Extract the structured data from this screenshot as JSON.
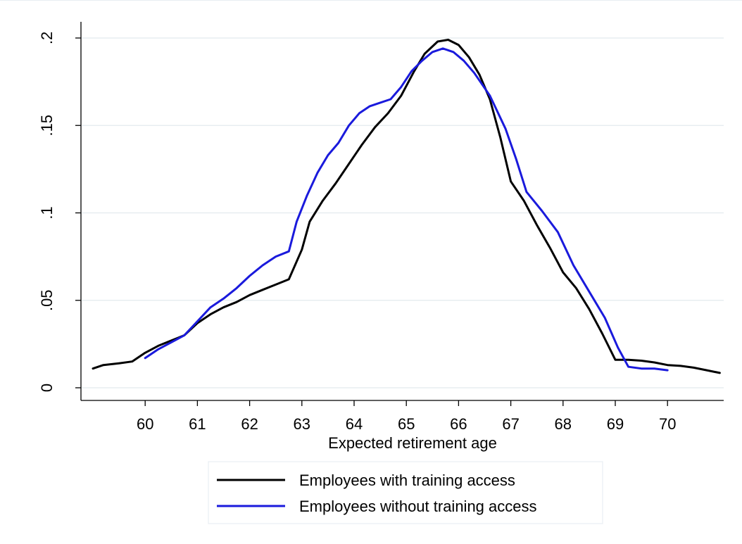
{
  "chart_data": {
    "type": "line",
    "title": "",
    "xlabel": "Expected retirement age",
    "ylabel": "",
    "xlim": [
      59,
      71.1
    ],
    "ylim": [
      -0.007,
      0.203
    ],
    "x_ticks": [
      60,
      61,
      62,
      63,
      64,
      65,
      66,
      67,
      68,
      69,
      70
    ],
    "x_tick_labels": [
      "60",
      "61",
      "62",
      "63",
      "64",
      "65",
      "66",
      "67",
      "68",
      "69",
      "70"
    ],
    "y_ticks": [
      0,
      0.05,
      0.1,
      0.15,
      0.2
    ],
    "y_tick_labels": [
      "0",
      ".05",
      ".1",
      ".15",
      ".2"
    ],
    "grid": true,
    "legend_position": "bottom",
    "series": [
      {
        "name": "Employees with training access",
        "color": "#000000",
        "x": [
          59,
          59.2,
          59.5,
          59.75,
          60,
          60.25,
          60.5,
          60.75,
          61,
          61.25,
          61.5,
          61.75,
          62,
          62.25,
          62.5,
          62.75,
          63,
          63.15,
          63.4,
          63.65,
          63.9,
          64.15,
          64.4,
          64.65,
          64.9,
          65.15,
          65.35,
          65.6,
          65.8,
          66,
          66.2,
          66.4,
          66.6,
          66.8,
          67,
          67.25,
          67.5,
          67.75,
          68,
          68.25,
          68.5,
          68.75,
          69,
          69.25,
          69.5,
          69.75,
          70,
          70.25,
          70.5,
          70.75,
          71
        ],
        "values": [
          0.011,
          0.013,
          0.014,
          0.015,
          0.02,
          0.024,
          0.027,
          0.03,
          0.037,
          0.042,
          0.046,
          0.049,
          0.053,
          0.056,
          0.059,
          0.062,
          0.079,
          0.095,
          0.107,
          0.117,
          0.128,
          0.139,
          0.149,
          0.157,
          0.167,
          0.181,
          0.191,
          0.198,
          0.199,
          0.196,
          0.189,
          0.179,
          0.165,
          0.143,
          0.118,
          0.107,
          0.093,
          0.08,
          0.066,
          0.057,
          0.045,
          0.031,
          0.016,
          0.016,
          0.0155,
          0.0145,
          0.013,
          0.0125,
          0.0115,
          0.01,
          0.0085
        ]
      },
      {
        "name": "Employees without training access",
        "color": "#1a1adc",
        "x": [
          60,
          60.25,
          60.5,
          60.75,
          61,
          61.25,
          61.5,
          61.75,
          62,
          62.25,
          62.5,
          62.75,
          62.9,
          63.1,
          63.3,
          63.5,
          63.7,
          63.9,
          64.1,
          64.3,
          64.5,
          64.7,
          64.9,
          65.1,
          65.3,
          65.5,
          65.7,
          65.9,
          66.1,
          66.3,
          66.6,
          66.9,
          67.1,
          67.3,
          67.6,
          67.9,
          68.2,
          68.5,
          68.8,
          69.05,
          69.25,
          69.5,
          69.75,
          70
        ],
        "values": [
          0.017,
          0.022,
          0.026,
          0.03,
          0.038,
          0.046,
          0.051,
          0.057,
          0.064,
          0.07,
          0.075,
          0.078,
          0.095,
          0.11,
          0.123,
          0.133,
          0.14,
          0.15,
          0.157,
          0.161,
          0.163,
          0.165,
          0.172,
          0.181,
          0.187,
          0.192,
          0.194,
          0.192,
          0.187,
          0.18,
          0.167,
          0.148,
          0.131,
          0.112,
          0.101,
          0.089,
          0.07,
          0.055,
          0.04,
          0.023,
          0.012,
          0.011,
          0.011,
          0.01
        ]
      }
    ]
  }
}
